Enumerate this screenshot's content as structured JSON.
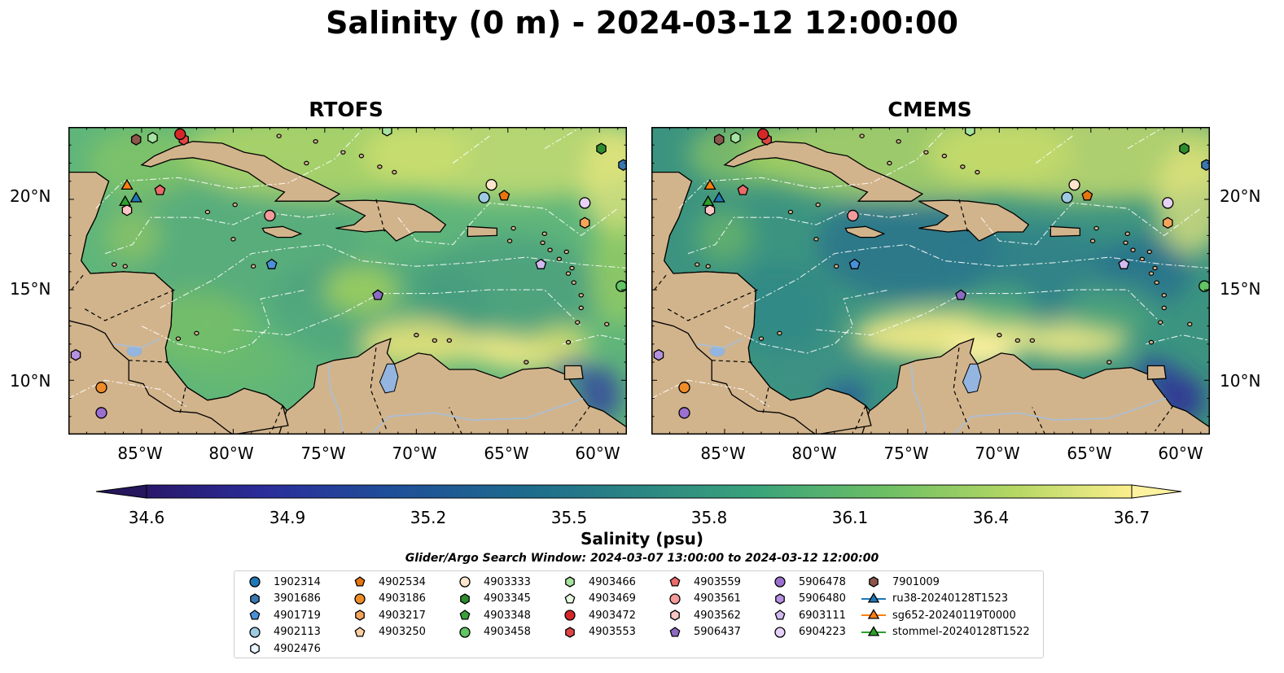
{
  "title": "Salinity (0 m) - 2024-03-12 12:00:00",
  "panels": [
    {
      "title": "RTOFS",
      "field": "fresh"
    },
    {
      "title": "CMEMS",
      "field": "salty"
    }
  ],
  "map": {
    "lat_labels": [
      "20°N",
      "15°N",
      "10°N"
    ],
    "lon_labels": [
      "85°W",
      "80°W",
      "75°W",
      "70°W",
      "65°W",
      "60°W"
    ],
    "extent": {
      "lon_min": -89,
      "lon_max": -58.5,
      "lat_min": 7,
      "lat_max": 24
    },
    "land_color": "#d2b48c",
    "lake_color": "#93b5e0"
  },
  "colorbar": {
    "label": "Salinity (psu)",
    "ticks": [
      "34.6",
      "34.9",
      "35.2",
      "35.5",
      "35.8",
      "36.1",
      "36.4",
      "36.7"
    ],
    "colormap": "haline"
  },
  "search_window": "Glider/Argo Search Window: 2024-03-07 13:00:00 to 2024-03-12 12:00:00",
  "legend": {
    "items": [
      {
        "label": "1902314",
        "marker": "circle",
        "color": "#1f77b4"
      },
      {
        "label": "3901686",
        "marker": "hexagon",
        "color": "#3a78b0"
      },
      {
        "label": "4901719",
        "marker": "pentagon",
        "color": "#4a90d9"
      },
      {
        "label": "4902113",
        "marker": "circle",
        "color": "#9ecae1"
      },
      {
        "label": "4902476",
        "marker": "hexagon",
        "color": "#e8f4fb"
      },
      {
        "label": "4902534",
        "marker": "pentagon",
        "color": "#e6750e"
      },
      {
        "label": "4903186",
        "marker": "circle",
        "color": "#f08c28"
      },
      {
        "label": "4903217",
        "marker": "hexagon",
        "color": "#f5a55a"
      },
      {
        "label": "4903250",
        "marker": "pentagon",
        "color": "#fbd0a0"
      },
      {
        "label": "4903333",
        "marker": "circle",
        "color": "#fde6cc"
      },
      {
        "label": "4903345",
        "marker": "hexagon",
        "color": "#2e8b2e"
      },
      {
        "label": "4903348",
        "marker": "pentagon",
        "color": "#3aa13a"
      },
      {
        "label": "4903458",
        "marker": "circle",
        "color": "#62c462"
      },
      {
        "label": "4903466",
        "marker": "hexagon",
        "color": "#a7e3a0"
      },
      {
        "label": "4903469",
        "marker": "pentagon",
        "color": "#e4f7df"
      },
      {
        "label": "4903472",
        "marker": "circle",
        "color": "#d62728"
      },
      {
        "label": "4903553",
        "marker": "hexagon",
        "color": "#e04444"
      },
      {
        "label": "4903559",
        "marker": "pentagon",
        "color": "#ec6a6a"
      },
      {
        "label": "4903561",
        "marker": "circle",
        "color": "#f49a9a"
      },
      {
        "label": "4903562",
        "marker": "hexagon",
        "color": "#fac5c5"
      },
      {
        "label": "5906437",
        "marker": "pentagon",
        "color": "#8c6bc2"
      },
      {
        "label": "5906478",
        "marker": "circle",
        "color": "#9b6fcf"
      },
      {
        "label": "5906480",
        "marker": "hexagon",
        "color": "#b592e0"
      },
      {
        "label": "6903111",
        "marker": "pentagon",
        "color": "#d3baf0"
      },
      {
        "label": "6904223",
        "marker": "circle",
        "color": "#e6d2f7"
      },
      {
        "label": "7901009",
        "marker": "hexagon",
        "color": "#8c564b"
      },
      {
        "label": "ru38-20240128T1523",
        "marker": "triangle-line",
        "color": "#1f77b4"
      },
      {
        "label": "sg652-20240119T0000",
        "marker": "triangle-line",
        "color": "#ff7f0e"
      },
      {
        "label": "stommel-20240128T1522",
        "marker": "triangle-line",
        "color": "#2ca02c"
      }
    ]
  },
  "floats": [
    {
      "id": "7901009",
      "lon": -85.3,
      "lat": 23.3
    },
    {
      "id": "4903466",
      "lon": -84.4,
      "lat": 23.4
    },
    {
      "id": "4903553",
      "lon": -82.7,
      "lat": 23.3
    },
    {
      "id": "4903472",
      "lon": -82.9,
      "lat": 23.6
    },
    {
      "id": "4903466",
      "lon": -71.6,
      "lat": 23.8
    },
    {
      "id": "4903345",
      "lon": -59.9,
      "lat": 22.8
    },
    {
      "id": "3901686",
      "lon": -58.7,
      "lat": 21.9
    },
    {
      "id": "4903559",
      "lon": -84.0,
      "lat": 20.5
    },
    {
      "id": "4903562",
      "lon": -85.8,
      "lat": 19.4
    },
    {
      "id": "4903561",
      "lon": -78.0,
      "lat": 19.1
    },
    {
      "id": "4901719",
      "lon": -77.9,
      "lat": 16.4
    },
    {
      "id": "4903333",
      "lon": -65.9,
      "lat": 20.8
    },
    {
      "id": "4902113",
      "lon": -66.3,
      "lat": 20.1
    },
    {
      "id": "4902534",
      "lon": -65.2,
      "lat": 20.2
    },
    {
      "id": "6904223",
      "lon": -60.8,
      "lat": 19.8
    },
    {
      "id": "4903217",
      "lon": -60.8,
      "lat": 18.7
    },
    {
      "id": "6903111",
      "lon": -63.2,
      "lat": 16.4
    },
    {
      "id": "5906437",
      "lon": -72.1,
      "lat": 14.7
    },
    {
      "id": "4903458",
      "lon": -58.8,
      "lat": 15.2
    },
    {
      "id": "5906480",
      "lon": -88.6,
      "lat": 11.4
    },
    {
      "id": "4903186",
      "lon": -87.2,
      "lat": 9.6
    },
    {
      "id": "5906478",
      "lon": -87.2,
      "lat": 8.2
    }
  ],
  "gliders": [
    {
      "id": "sg652-20240119T0000",
      "lon": -85.8,
      "lat": 20.8
    },
    {
      "id": "ru38-20240128T1523",
      "lon": -85.3,
      "lat": 20.1
    },
    {
      "id": "stommel-20240128T1522",
      "lon": -85.9,
      "lat": 19.9
    }
  ]
}
